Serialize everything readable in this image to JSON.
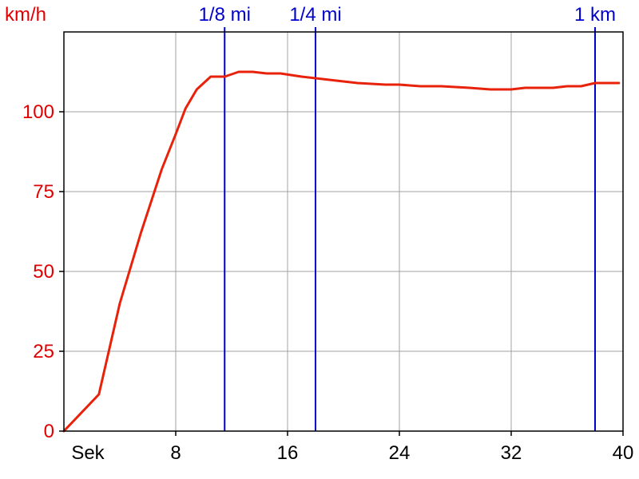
{
  "chart_data": {
    "type": "line",
    "y_unit_label": "km/h",
    "x_unit_label": "Sek",
    "xlim": [
      0,
      40
    ],
    "ylim": [
      0,
      125
    ],
    "x_ticks": [
      8,
      16,
      24,
      32,
      40
    ],
    "y_ticks": [
      0,
      25,
      50,
      75,
      100
    ],
    "grid": true,
    "colors": {
      "line": "#e8220a",
      "markers": "#0000cc",
      "grid": "#a0a0a0",
      "y_text": "#e00000"
    },
    "distance_markers": [
      {
        "label": "1/8 mi",
        "x": 11.5
      },
      {
        "label": "1/4 mi",
        "x": 18.0
      },
      {
        "label": "1 km",
        "x": 38.0
      }
    ],
    "series": [
      {
        "x": [
          0,
          2.5,
          4,
          5.5,
          7,
          8,
          8.7,
          9.5,
          10.5,
          11.5,
          12.5,
          13.5,
          14.5,
          15.5,
          17,
          19,
          21,
          23,
          24,
          25.5,
          27,
          29,
          30.5,
          32,
          33,
          34,
          35,
          36,
          37,
          38,
          39,
          39.7
        ],
        "y": [
          0,
          11.5,
          40,
          62,
          82,
          93,
          101,
          107,
          111,
          111,
          112.5,
          112.5,
          112,
          112,
          111,
          110,
          109,
          108.5,
          108.5,
          108,
          108,
          107.5,
          107,
          107,
          107.5,
          107.5,
          107.5,
          108,
          108,
          109,
          109,
          109
        ]
      }
    ]
  }
}
